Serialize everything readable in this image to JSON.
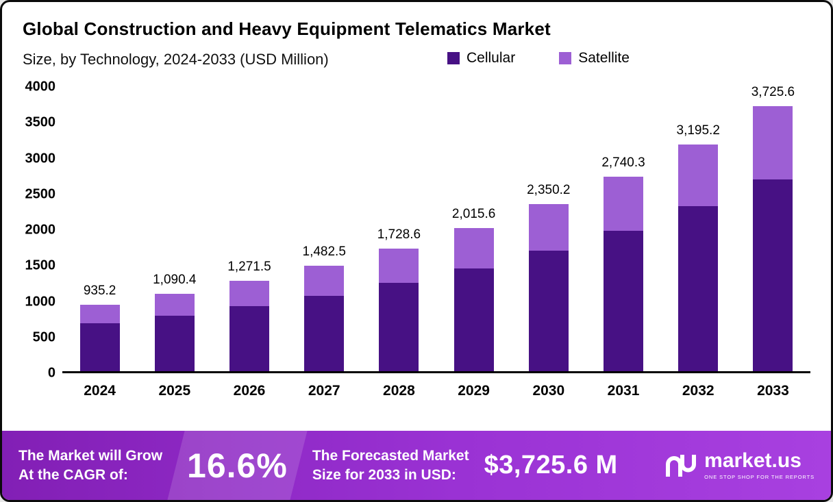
{
  "chart": {
    "title_line1": "Global Construction and Heavy Equipment Telematics Market",
    "title_line2": "Size, by Technology, 2024-2033 (USD Million)"
  },
  "chart_data": {
    "type": "bar",
    "stacked": true,
    "title": "Global Construction and Heavy Equipment Telematics Market Size, by Technology, 2024-2033 (USD Million)",
    "xlabel": "",
    "ylabel": "",
    "categories": [
      "2024",
      "2025",
      "2026",
      "2027",
      "2028",
      "2029",
      "2030",
      "2031",
      "2032",
      "2033"
    ],
    "series": [
      {
        "name": "Cellular",
        "color": "#471184",
        "values": [
          670,
          780,
          915,
          1065,
          1245,
          1450,
          1700,
          1980,
          2320,
          2700
        ]
      },
      {
        "name": "Satellite",
        "color": "#9d5fd4",
        "values": [
          265.2,
          310.4,
          356.5,
          417.5,
          483.6,
          565.6,
          650.2,
          760.3,
          875.2,
          1025.6
        ]
      }
    ],
    "totals": [
      935.2,
      1090.4,
      1271.5,
      1482.5,
      1728.6,
      2015.6,
      2350.2,
      2740.3,
      3195.2,
      3725.6
    ],
    "total_labels": [
      "935.2",
      "1,090.4",
      "1,271.5",
      "1,482.5",
      "1,728.6",
      "2,015.6",
      "2,350.2",
      "2,740.3",
      "3,195.2",
      "3,725.6"
    ],
    "yticks": [
      0,
      500,
      1000,
      1500,
      2000,
      2500,
      3000,
      3500,
      4000
    ],
    "ylim": [
      0,
      4000
    ],
    "grid": false,
    "legend_position": "top"
  },
  "banner": {
    "cagr_label_line1": "The Market will Grow",
    "cagr_label_line2": "At the CAGR of:",
    "cagr_value": "16.6%",
    "forecast_label_line1": "The Forecasted Market",
    "forecast_label_line2": "Size for 2033 in USD:",
    "forecast_value": "$3,725.6 M",
    "brand": "market.us",
    "brand_tagline": "ONE STOP SHOP FOR THE REPORTS",
    "background": "#9a32d4"
  }
}
